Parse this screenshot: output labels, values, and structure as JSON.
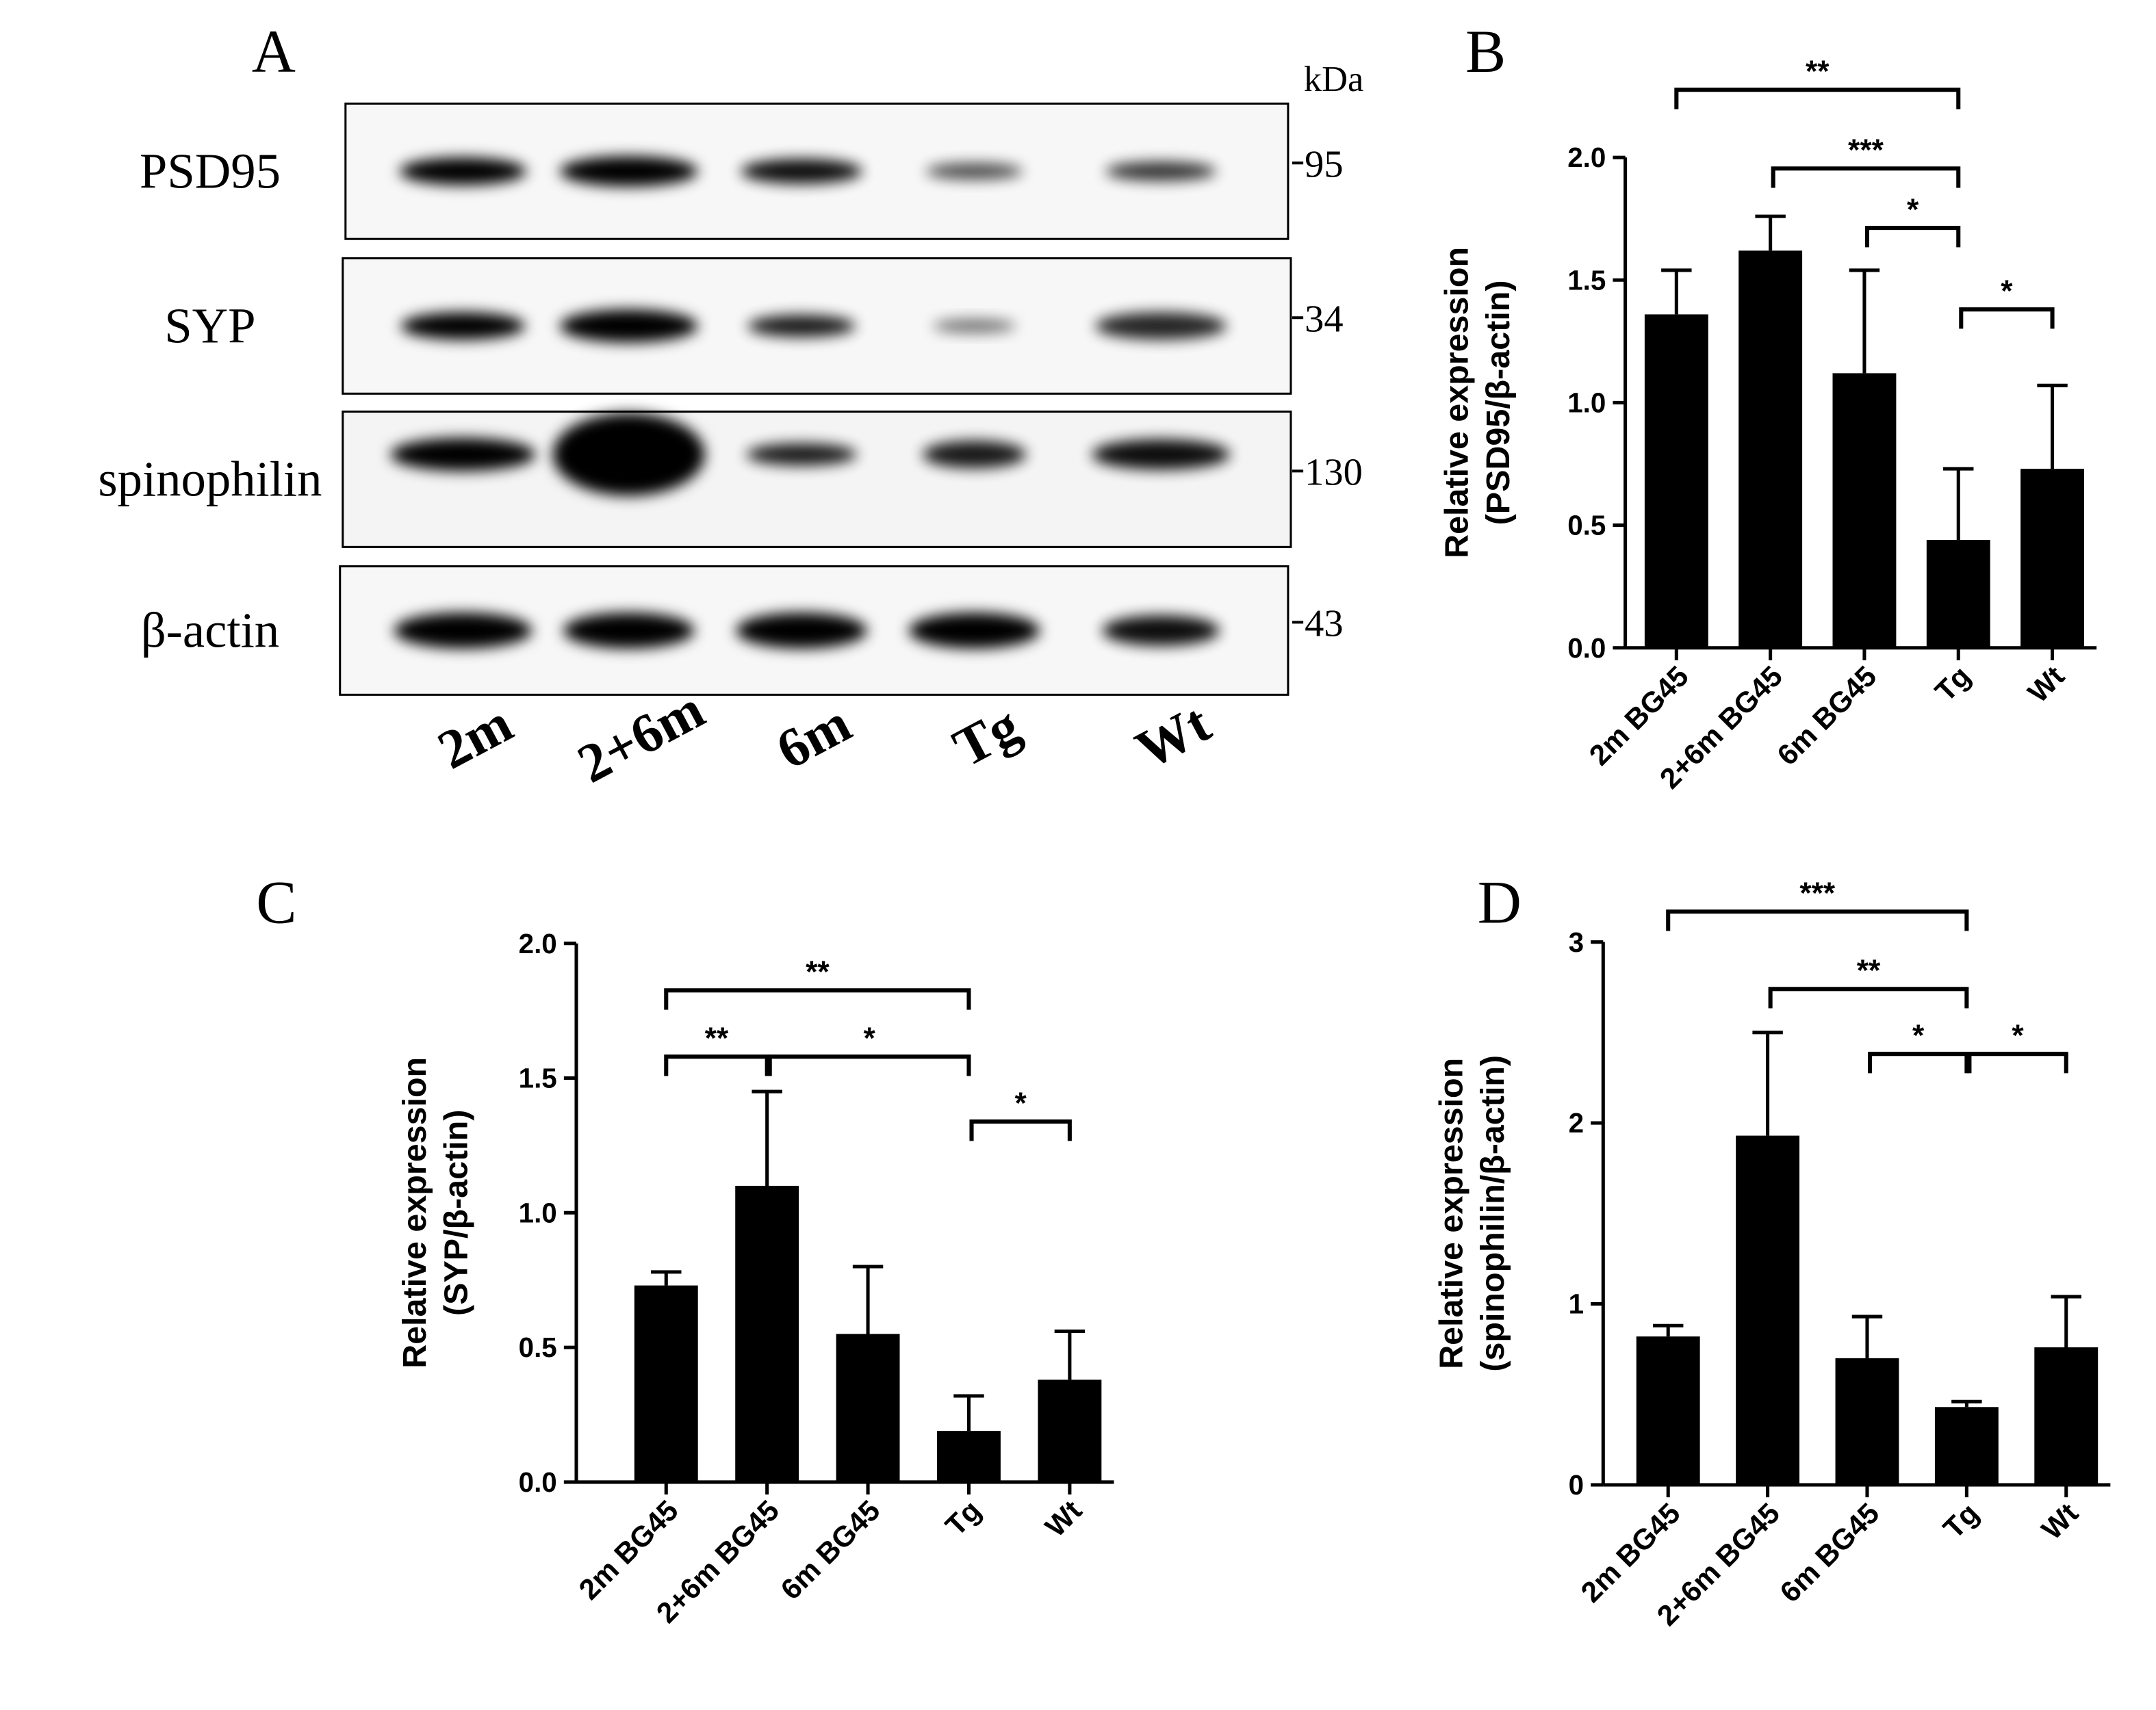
{
  "blot": {
    "panel": "A",
    "unit": "kDa",
    "rows": [
      {
        "label": "PSD95",
        "marker": "95"
      },
      {
        "label": "SYP",
        "marker": "34"
      },
      {
        "label": "spinophilin",
        "marker": "130"
      },
      {
        "label": "β-actin",
        "marker": "43"
      }
    ],
    "lanes": [
      "2m",
      "2+6m",
      "6m",
      "Tg",
      "Wt"
    ]
  },
  "chart_data": [
    {
      "type": "bar",
      "panel": "B",
      "ylabel": [
        "Relative expression",
        "(PSD95/β-actin)"
      ],
      "categories": [
        "2m BG45",
        "2+6m BG45",
        "6m BG45",
        "Tg",
        "Wt"
      ],
      "values": [
        1.36,
        1.62,
        1.12,
        0.44,
        0.73
      ],
      "errors": [
        0.18,
        0.14,
        0.42,
        0.29,
        0.34
      ],
      "color": "#000000",
      "ylim": [
        0,
        2
      ],
      "yticks": [
        {
          "value": 0,
          "label": "0.0"
        },
        {
          "value": 0.5,
          "label": "0.5"
        },
        {
          "value": 1,
          "label": "1.0"
        },
        {
          "value": 1.5,
          "label": "1.5"
        },
        {
          "value": 2,
          "label": "2.0"
        }
      ],
      "significance": [
        {
          "label": "**",
          "from": "2m BG45",
          "to": "Tg"
        },
        {
          "label": "***",
          "from": "2+6m BG45",
          "to": "Tg"
        },
        {
          "label": "*",
          "from": "6m BG45",
          "to": "Tg"
        },
        {
          "label": "*",
          "from": "Tg",
          "to": "Wt"
        }
      ]
    },
    {
      "type": "bar",
      "panel": "C",
      "ylabel": [
        "Relative expression",
        "(SYP/β-actin)"
      ],
      "categories": [
        "2m BG45",
        "2+6m BG45",
        "6m BG45",
        "Tg",
        "Wt"
      ],
      "values": [
        0.73,
        1.1,
        0.55,
        0.19,
        0.38
      ],
      "errors": [
        0.05,
        0.35,
        0.25,
        0.13,
        0.18
      ],
      "color": "#000000",
      "ylim": [
        0,
        2
      ],
      "yticks": [
        {
          "value": 0,
          "label": "0.0"
        },
        {
          "value": 0.5,
          "label": "0.5"
        },
        {
          "value": 1,
          "label": "1.0"
        },
        {
          "value": 1.5,
          "label": "1.5"
        },
        {
          "value": 2,
          "label": "2.0"
        }
      ],
      "significance": [
        {
          "label": "**",
          "from": "2m BG45",
          "to": "2+6m BG45"
        },
        {
          "label": "**",
          "from": "2m BG45",
          "to": "Tg"
        },
        {
          "label": "*",
          "from": "2+6m BG45",
          "to": "Tg"
        },
        {
          "label": "*",
          "from": "Tg",
          "to": "Wt"
        }
      ]
    },
    {
      "type": "bar",
      "panel": "D",
      "ylabel": [
        "Relative expression",
        "(spinophilin/β-actin)"
      ],
      "categories": [
        "2m BG45",
        "2+6m BG45",
        "6m BG45",
        "Tg",
        "Wt"
      ],
      "values": [
        0.82,
        1.93,
        0.7,
        0.43,
        0.76
      ],
      "errors": [
        0.06,
        0.57,
        0.23,
        0.03,
        0.28
      ],
      "color": "#000000",
      "ylim": [
        0,
        3
      ],
      "yticks": [
        0,
        1,
        2,
        3
      ],
      "significance": [
        {
          "label": "***",
          "from": "2m BG45",
          "to": "Tg"
        },
        {
          "label": "**",
          "from": "2+6m BG45",
          "to": "Tg"
        },
        {
          "label": "*",
          "from": "6m BG45",
          "to": "Tg"
        },
        {
          "label": "*",
          "from": "Tg",
          "to": "Wt"
        }
      ]
    }
  ]
}
